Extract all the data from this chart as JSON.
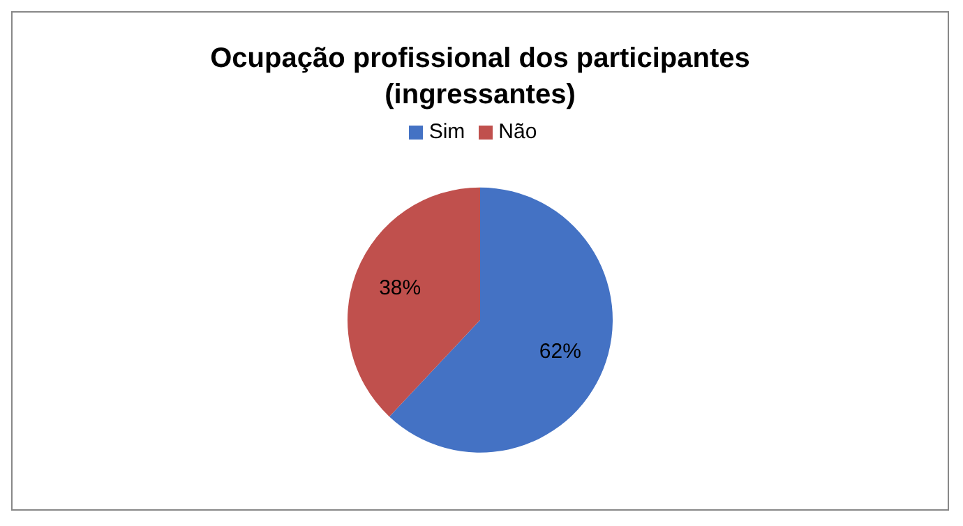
{
  "chart_data": {
    "type": "pie",
    "title": "Ocupação profissional dos participantes (ingressantes)",
    "categories": [
      "Sim",
      "Não"
    ],
    "values": [
      62,
      38
    ],
    "colors": [
      "#4472c4",
      "#c0504d"
    ],
    "value_labels": [
      "62%",
      "38%"
    ],
    "legend": "top"
  }
}
